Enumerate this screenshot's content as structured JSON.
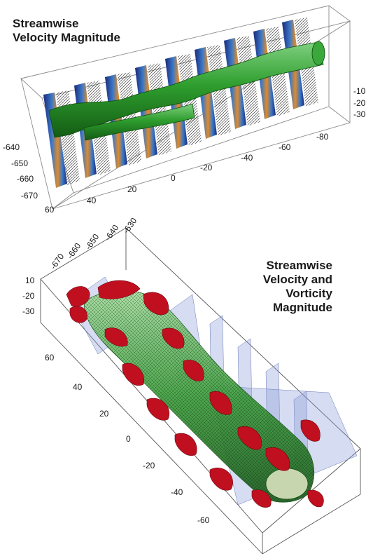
{
  "top_panel": {
    "title_line1": "Streamwise",
    "title_line2": "Velocity Magnitude",
    "axis_x": [
      "60",
      "40",
      "20",
      "0",
      "-20",
      "-40",
      "-60",
      "-80"
    ],
    "axis_z": [
      "-640",
      "-650",
      "-660",
      "-670"
    ],
    "axis_y": [
      "-10",
      "-20",
      "-30"
    ],
    "colors": {
      "iso": "#2e9e2e",
      "slice_dark": "#1b2a7a",
      "slice_mid": "#3a78c8",
      "slice_warm": "#e08a2a",
      "arrows": "#111111"
    }
  },
  "bottom_panel": {
    "title_lines": [
      "Streamwise",
      "Velocity and",
      "Vorticity",
      "Magnitude"
    ],
    "axis_x": [
      "60",
      "40",
      "20",
      "0",
      "-20",
      "-40",
      "-60"
    ],
    "axis_z": [
      "-670",
      "-660",
      "-650",
      "-640",
      "-630"
    ],
    "axis_y": [
      "10",
      "-20",
      "-30"
    ],
    "colors": {
      "iso_velocity": "#3fa03f",
      "iso_vorticity": "#c01020",
      "slice_plane": "#8a9ad8"
    }
  }
}
